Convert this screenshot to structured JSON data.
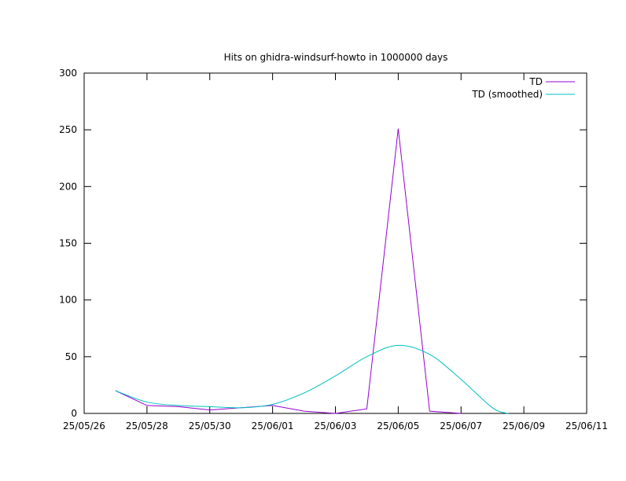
{
  "chart_data": {
    "type": "line",
    "title": "Hits on ghidra-windsurf-howto in 1000000 days",
    "xlabel": "",
    "ylabel": "",
    "xlim": [
      "25/05/26",
      "25/06/11"
    ],
    "ylim": [
      0,
      300
    ],
    "x_ticks": [
      "25/05/26",
      "25/05/28",
      "25/05/30",
      "25/06/01",
      "25/06/03",
      "25/06/05",
      "25/06/07",
      "25/06/09",
      "25/06/11"
    ],
    "y_ticks": [
      0,
      50,
      100,
      150,
      200,
      250,
      300
    ],
    "grid": false,
    "legend_position": "top-right",
    "series": [
      {
        "name": "TD",
        "color": "#9400d3",
        "x": [
          "25/05/27",
          "25/05/28",
          "25/05/29",
          "25/05/30",
          "25/05/31",
          "25/06/01",
          "25/06/02",
          "25/06/03",
          "25/06/04",
          "25/06/05",
          "25/06/06",
          "25/06/07"
        ],
        "values": [
          20,
          7,
          6,
          3,
          5,
          7,
          2,
          0,
          4,
          251,
          2,
          0
        ]
      },
      {
        "name": "TD (smoothed)",
        "color": "#00c0c0",
        "x": [
          "25/05/27",
          "25/05/28",
          "25/05/29",
          "25/05/30",
          "25/05/31",
          "25/06/01",
          "25/06/02",
          "25/06/03",
          "25/06/04",
          "25/06/05",
          "25/06/06",
          "25/06/07",
          "25/06/08",
          "25/06/08 12:00"
        ],
        "values": [
          20,
          10,
          7,
          6,
          5,
          8,
          18,
          33,
          50,
          60,
          52,
          30,
          5,
          0
        ]
      }
    ]
  }
}
